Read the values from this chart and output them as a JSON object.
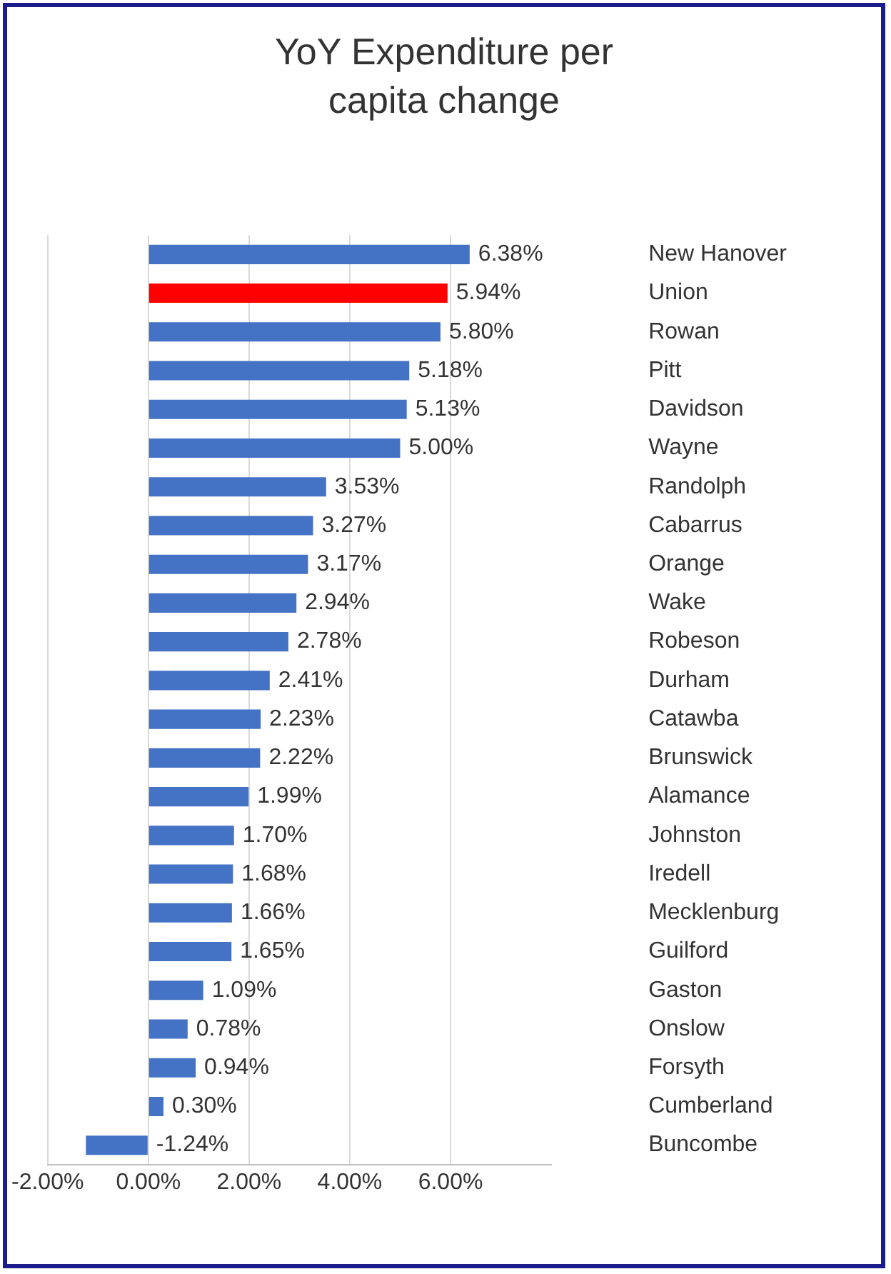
{
  "chart_data": {
    "type": "bar",
    "orientation": "horizontal",
    "title": "YoY Expenditure per capita change",
    "categories": [
      "New Hanover",
      "Union",
      "Rowan",
      "Pitt",
      "Davidson",
      "Wayne",
      "Randolph",
      "Cabarrus",
      "Orange",
      "Wake",
      "Robeson",
      "Durham",
      "Catawba",
      "Brunswick",
      "Alamance",
      "Johnston",
      "Iredell",
      "Mecklenburg",
      "Guilford",
      "Gaston",
      "Onslow",
      "Forsyth",
      "Cumberland",
      "Buncombe"
    ],
    "values": [
      6.38,
      5.94,
      5.8,
      5.18,
      5.13,
      5.0,
      3.53,
      3.27,
      3.17,
      2.94,
      2.78,
      2.41,
      2.23,
      2.22,
      1.99,
      1.7,
      1.68,
      1.66,
      1.65,
      1.09,
      0.78,
      0.94,
      0.3,
      -1.24
    ],
    "value_labels": [
      "6.38%",
      "5.94%",
      "5.80%",
      "5.18%",
      "5.13%",
      "5.00%",
      "3.53%",
      "3.27%",
      "3.17%",
      "2.94%",
      "2.78%",
      "2.41%",
      "2.23%",
      "2.22%",
      "1.99%",
      "1.70%",
      "1.68%",
      "1.66%",
      "1.65%",
      "1.09%",
      "0.78%",
      "0.94%",
      "0.30%",
      "-1.24%"
    ],
    "colors": [
      "#4472c4",
      "#ff0000",
      "#4472c4",
      "#4472c4",
      "#4472c4",
      "#4472c4",
      "#4472c4",
      "#4472c4",
      "#4472c4",
      "#4472c4",
      "#4472c4",
      "#4472c4",
      "#4472c4",
      "#4472c4",
      "#4472c4",
      "#4472c4",
      "#4472c4",
      "#4472c4",
      "#4472c4",
      "#4472c4",
      "#4472c4",
      "#4472c4",
      "#4472c4",
      "#4472c4"
    ],
    "xlim": [
      -2,
      8
    ],
    "xticks": [
      {
        "value": -2,
        "label": "-2.00%"
      },
      {
        "value": 0,
        "label": "0.00%"
      },
      {
        "value": 2,
        "label": "2.00%"
      },
      {
        "value": 4,
        "label": "4.00%"
      },
      {
        "value": 6,
        "label": "6.00%"
      }
    ],
    "grid": "x",
    "legend": false
  }
}
